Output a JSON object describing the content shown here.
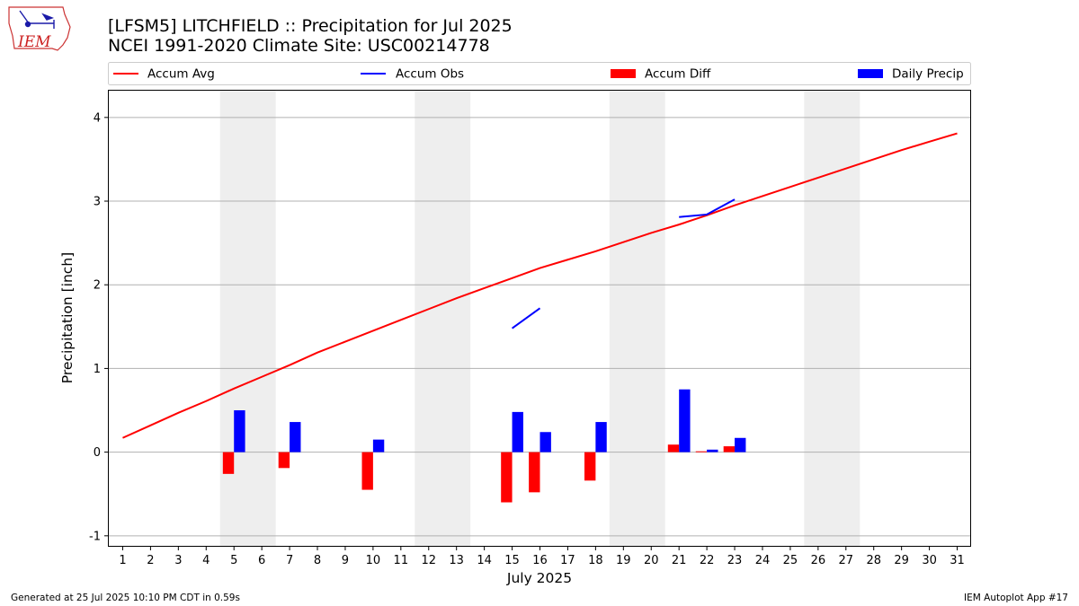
{
  "header": {
    "logo_text": "IEM",
    "title_line1": "[LFSM5] LITCHFIELD :: Precipitation for Jul 2025",
    "title_line2": "NCEI 1991-2020 Climate Site: USC00214778"
  },
  "footer": {
    "generated": "Generated at 25 Jul 2025 10:10 PM CDT in 0.59s",
    "app": "IEM Autoplot App #17"
  },
  "chart_data": {
    "type": "bar",
    "xlabel": "July 2025",
    "ylabel": "Precipitation [inch]",
    "xlim": [
      0.5,
      31.5
    ],
    "ylim": [
      -1.12,
      4.32
    ],
    "yticks": [
      -1,
      0,
      1,
      2,
      3,
      4
    ],
    "x": [
      1,
      2,
      3,
      4,
      5,
      6,
      7,
      8,
      9,
      10,
      11,
      12,
      13,
      14,
      15,
      16,
      17,
      18,
      19,
      20,
      21,
      22,
      23,
      24,
      25,
      26,
      27,
      28,
      29,
      30,
      31
    ],
    "grid": "horizontal",
    "legend_position": "top",
    "weekend_shading": [
      [
        4.5,
        6.5
      ],
      [
        11.5,
        13.5
      ],
      [
        18.5,
        20.5
      ],
      [
        25.5,
        27.5
      ]
    ],
    "colors": {
      "accum_avg": "#ff0000",
      "accum_obs": "#0000ff",
      "accum_diff": "#ff0000",
      "daily_precip": "#0000ff",
      "shade": "#eeeeee",
      "grid": "#b0b0b0"
    },
    "series": [
      {
        "name": "Accum Avg",
        "kind": "line",
        "values": [
          0.17,
          0.32,
          0.47,
          0.61,
          0.76,
          0.9,
          1.04,
          1.19,
          1.32,
          1.45,
          1.58,
          1.71,
          1.84,
          1.96,
          2.08,
          2.2,
          2.3,
          2.4,
          2.51,
          2.62,
          2.72,
          2.83,
          2.95,
          3.06,
          3.17,
          3.28,
          3.39,
          3.5,
          3.61,
          3.71,
          3.81
        ]
      },
      {
        "name": "Accum Obs",
        "kind": "line",
        "values": [
          null,
          null,
          null,
          null,
          null,
          null,
          null,
          null,
          null,
          null,
          null,
          null,
          null,
          null,
          1.48,
          1.72,
          null,
          null,
          null,
          null,
          2.81,
          2.84,
          3.02,
          null,
          null,
          null,
          null,
          null,
          null,
          null,
          null
        ]
      },
      {
        "name": "Accum Diff",
        "kind": "bar",
        "values": [
          0,
          0,
          0,
          0,
          -0.26,
          0,
          -0.19,
          0,
          0,
          -0.45,
          0,
          0,
          0,
          0,
          -0.6,
          -0.48,
          0,
          -0.34,
          0,
          0,
          0.09,
          0.01,
          0.07,
          0,
          0,
          0,
          0,
          0,
          0,
          0,
          0
        ]
      },
      {
        "name": "Daily Precip",
        "kind": "bar",
        "values": [
          0,
          0,
          0,
          0,
          0.5,
          0,
          0.36,
          0,
          0,
          0.15,
          0,
          0,
          0,
          0,
          0.48,
          0.24,
          0,
          0.36,
          0,
          0,
          0.75,
          0.03,
          0.17,
          0,
          0,
          0,
          0,
          0,
          0,
          0,
          0
        ]
      }
    ]
  }
}
